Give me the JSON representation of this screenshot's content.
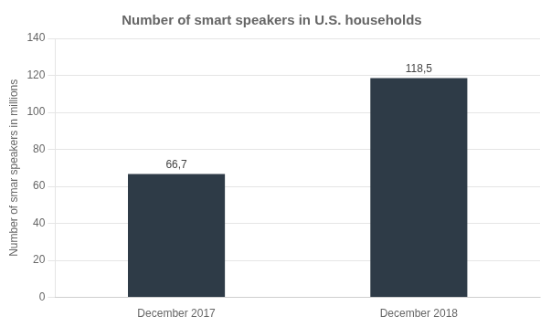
{
  "chart_data": {
    "type": "bar",
    "title": "Number of smart speakers in U.S. households",
    "ylabel": "Number of smar speakers in millions",
    "categories": [
      "December 2017",
      "December 2018"
    ],
    "values": [
      66.7,
      118.5
    ],
    "value_labels": [
      "66,7",
      "118,5"
    ],
    "data_labels": true,
    "color": "#2e3b47",
    "ylim": [
      0,
      140
    ],
    "yticks": [
      0,
      20,
      40,
      60,
      80,
      100,
      120,
      140
    ],
    "grid": true
  }
}
